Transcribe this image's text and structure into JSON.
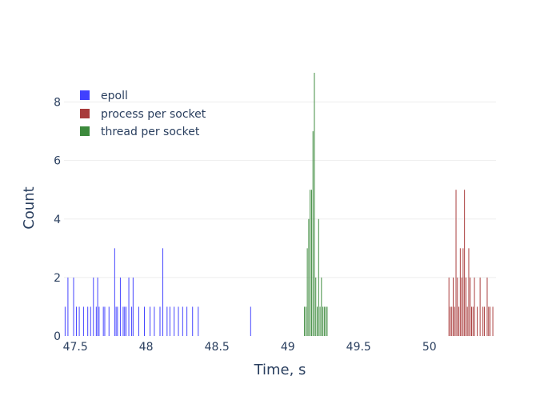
{
  "chart_data": {
    "type": "bar",
    "xlabel": "Time, s",
    "ylabel": "Count",
    "xlim": [
      47.42,
      50.47
    ],
    "ylim": [
      0,
      9.3
    ],
    "bin_width": 0.01,
    "legend_position": "top-left",
    "grid": true,
    "x_ticks": [
      {
        "value": 47.5,
        "label": "47.5"
      },
      {
        "value": 48,
        "label": "48"
      },
      {
        "value": 48.5,
        "label": "48.5"
      },
      {
        "value": 49,
        "label": "49"
      },
      {
        "value": 49.5,
        "label": "49.5"
      },
      {
        "value": 50,
        "label": "50"
      }
    ],
    "y_ticks": [
      {
        "value": 0,
        "label": "0"
      },
      {
        "value": 2,
        "label": "2"
      },
      {
        "value": 4,
        "label": "4"
      },
      {
        "value": 6,
        "label": "6"
      },
      {
        "value": 8,
        "label": "8"
      }
    ],
    "series": [
      {
        "name": "epoll",
        "color": "#4040ff",
        "bars": [
          [
            47.43,
            1
          ],
          [
            47.45,
            2
          ],
          [
            47.49,
            2
          ],
          [
            47.51,
            1
          ],
          [
            47.53,
            1
          ],
          [
            47.56,
            1
          ],
          [
            47.59,
            1
          ],
          [
            47.61,
            1
          ],
          [
            47.63,
            2
          ],
          [
            47.65,
            1
          ],
          [
            47.66,
            2
          ],
          [
            47.67,
            1
          ],
          [
            47.7,
            1
          ],
          [
            47.71,
            1
          ],
          [
            47.74,
            1
          ],
          [
            47.78,
            3
          ],
          [
            47.79,
            1
          ],
          [
            47.8,
            1
          ],
          [
            47.82,
            2
          ],
          [
            47.84,
            1
          ],
          [
            47.85,
            1
          ],
          [
            47.86,
            1
          ],
          [
            47.88,
            2
          ],
          [
            47.9,
            1
          ],
          [
            47.91,
            2
          ],
          [
            47.95,
            1
          ],
          [
            47.99,
            1
          ],
          [
            48.03,
            1
          ],
          [
            48.06,
            1
          ],
          [
            48.1,
            1
          ],
          [
            48.12,
            3
          ],
          [
            48.15,
            1
          ],
          [
            48.17,
            1
          ],
          [
            48.2,
            1
          ],
          [
            48.23,
            1
          ],
          [
            48.26,
            1
          ],
          [
            48.29,
            1
          ],
          [
            48.33,
            1
          ],
          [
            48.37,
            1
          ],
          [
            48.74,
            1
          ]
        ]
      },
      {
        "name": "process per socket",
        "color": "#a83a3a",
        "bars": [
          [
            50.14,
            2
          ],
          [
            50.15,
            1
          ],
          [
            50.16,
            1
          ],
          [
            50.17,
            2
          ],
          [
            50.18,
            1
          ],
          [
            50.19,
            5
          ],
          [
            50.2,
            2
          ],
          [
            50.21,
            1
          ],
          [
            50.22,
            3
          ],
          [
            50.23,
            2
          ],
          [
            50.24,
            3
          ],
          [
            50.25,
            5
          ],
          [
            50.26,
            2
          ],
          [
            50.27,
            1
          ],
          [
            50.28,
            3
          ],
          [
            50.29,
            2
          ],
          [
            50.3,
            1
          ],
          [
            50.31,
            1
          ],
          [
            50.32,
            2
          ],
          [
            50.34,
            1
          ],
          [
            50.36,
            2
          ],
          [
            50.38,
            1
          ],
          [
            50.39,
            1
          ],
          [
            50.41,
            2
          ],
          [
            50.42,
            1
          ],
          [
            50.43,
            1
          ],
          [
            50.45,
            1
          ]
        ]
      },
      {
        "name": "thread per socket",
        "color": "#3c8a3c",
        "bars": [
          [
            49.12,
            1
          ],
          [
            49.13,
            1
          ],
          [
            49.14,
            3
          ],
          [
            49.15,
            4
          ],
          [
            49.16,
            5
          ],
          [
            49.17,
            5
          ],
          [
            49.18,
            7
          ],
          [
            49.19,
            9
          ],
          [
            49.2,
            2
          ],
          [
            49.21,
            1
          ],
          [
            49.22,
            4
          ],
          [
            49.23,
            1
          ],
          [
            49.24,
            2
          ],
          [
            49.25,
            1
          ],
          [
            49.26,
            1
          ],
          [
            49.27,
            1
          ],
          [
            49.28,
            1
          ]
        ]
      }
    ]
  }
}
